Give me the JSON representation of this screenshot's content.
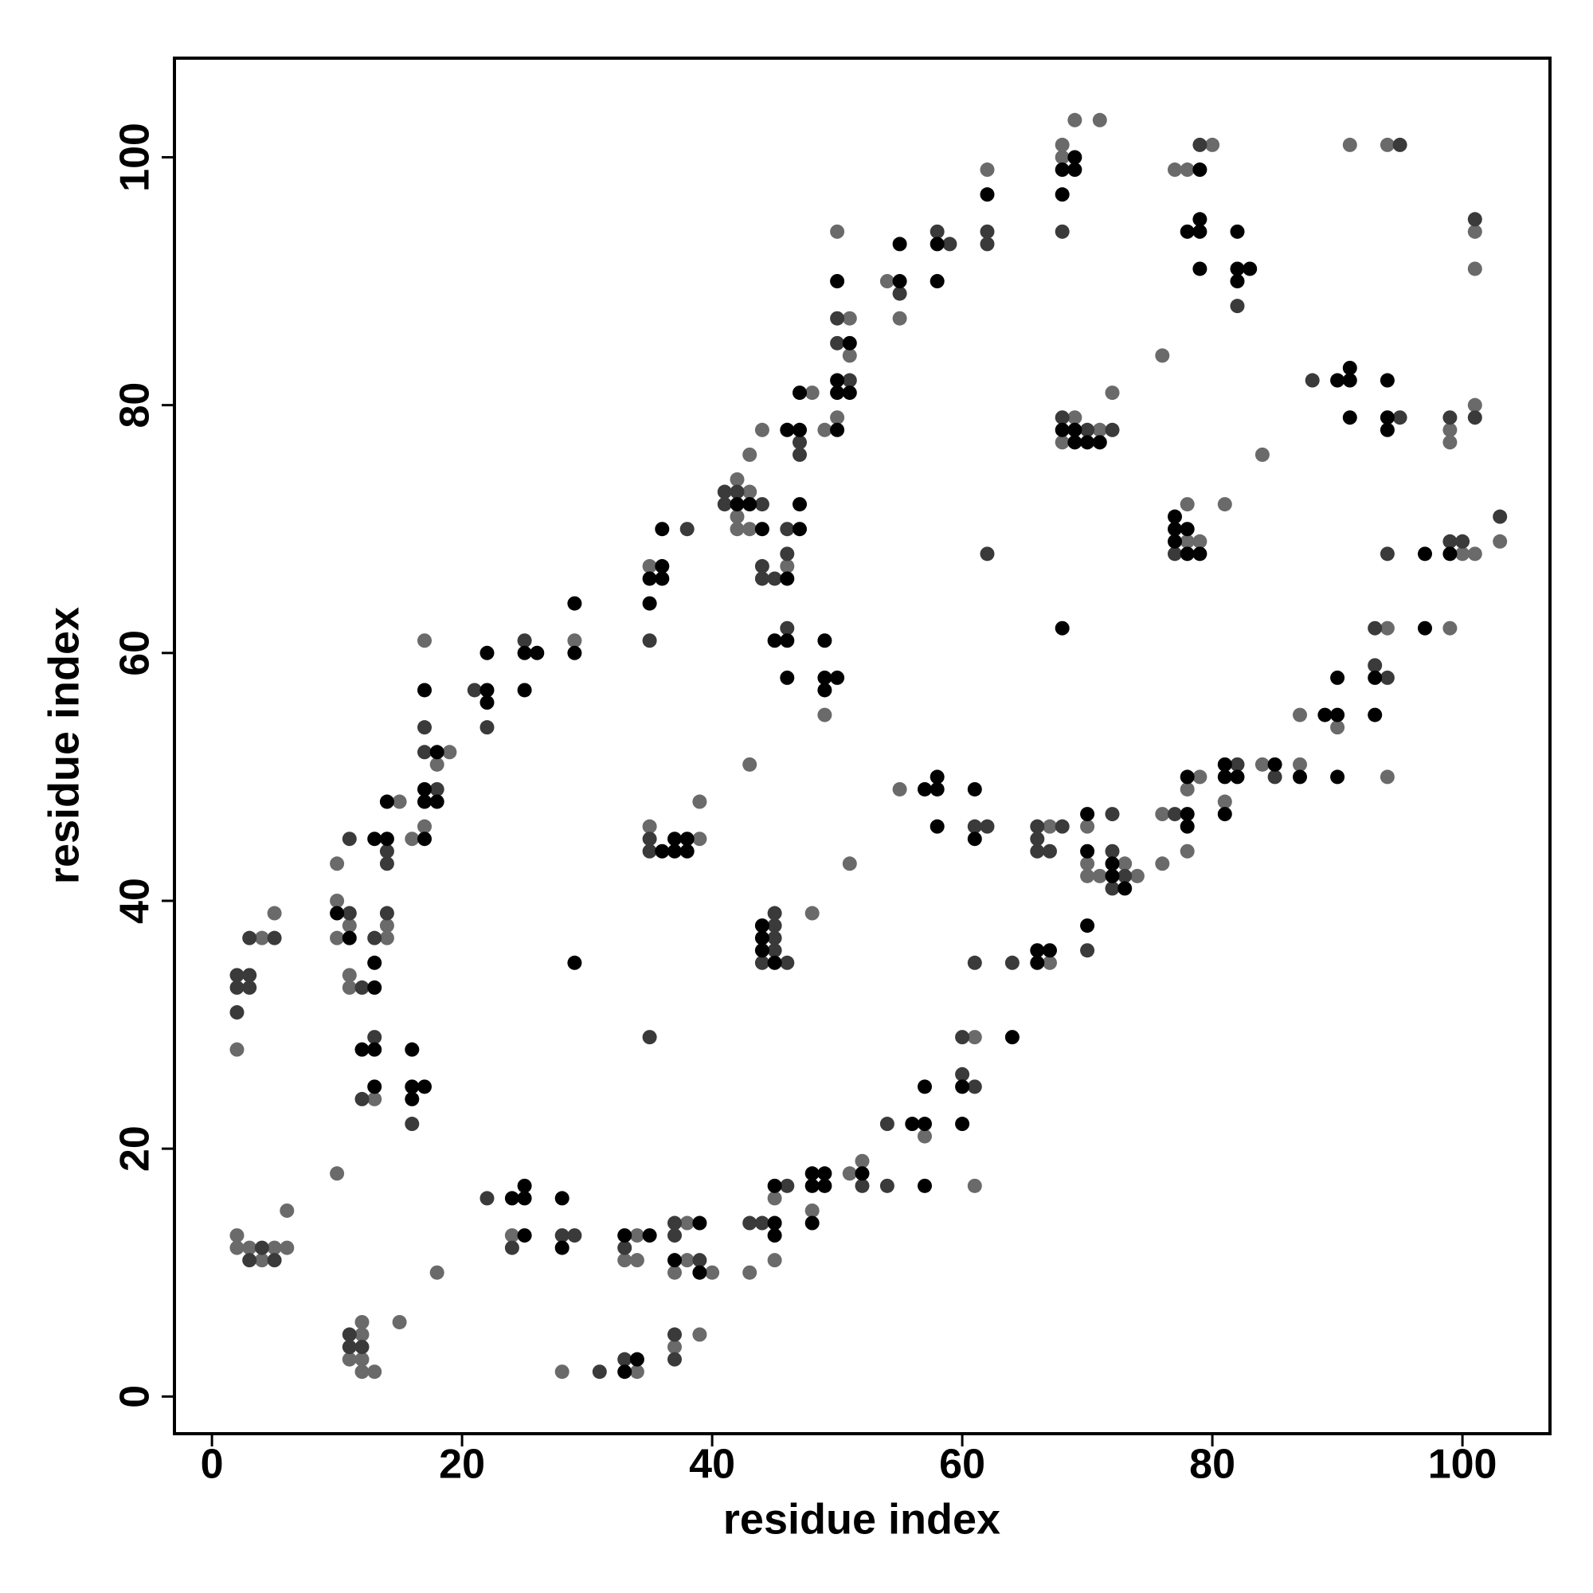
{
  "chart_data": {
    "type": "scatter",
    "x_label": "residue index",
    "y_label": "residue index",
    "xlim": [
      -3,
      107
    ],
    "ylim": [
      -3,
      108
    ],
    "xticks": [
      0,
      20,
      40,
      60,
      80,
      100
    ],
    "yticks": [
      0,
      20,
      40,
      60,
      80,
      100
    ],
    "grid": false,
    "series": [
      {
        "color": "#6a6a6a",
        "x": [
          2,
          4,
          5,
          2,
          2,
          3,
          4,
          5,
          6,
          6,
          10,
          10,
          10,
          10,
          11,
          11,
          11,
          14,
          14,
          15,
          16,
          17,
          18,
          19,
          17,
          13,
          11,
          12,
          12,
          12,
          12,
          13,
          15,
          18,
          29,
          24,
          28,
          34,
          34,
          33,
          34,
          35,
          35,
          39,
          39,
          38,
          38,
          40,
          37,
          37,
          39,
          42,
          43,
          42,
          42,
          43,
          43,
          44,
          48,
          46,
          43,
          45,
          45,
          43,
          49,
          50,
          51,
          51,
          50,
          49,
          48,
          51,
          48,
          51,
          52,
          54,
          55,
          62,
          55,
          61,
          61,
          57,
          67,
          67,
          68,
          69,
          71,
          68,
          69,
          71,
          72,
          68,
          70,
          70,
          70,
          71,
          73,
          74,
          76,
          77,
          78,
          80,
          78,
          78,
          79,
          81,
          84,
          76,
          78,
          79,
          78,
          76,
          81,
          84,
          87,
          87,
          91,
          94,
          90,
          94,
          94,
          99,
          100,
          101,
          99,
          99,
          101,
          101,
          101,
          103
        ],
        "values": [
          28,
          37,
          39,
          13,
          12,
          12,
          11,
          12,
          12,
          15,
          18,
          43,
          40,
          37,
          38,
          34,
          33,
          37,
          38,
          48,
          45,
          46,
          51,
          52,
          61,
          24,
          3,
          3,
          5,
          6,
          2,
          2,
          6,
          10,
          61,
          13,
          2,
          2,
          13,
          11,
          11,
          67,
          46,
          45,
          48,
          14,
          11,
          10,
          10,
          4,
          5,
          74,
          73,
          71,
          70,
          70,
          76,
          78,
          81,
          67,
          51,
          16,
          11,
          10,
          78,
          79,
          84,
          87,
          94,
          55,
          39,
          43,
          15,
          18,
          19,
          90,
          87,
          99,
          49,
          29,
          17,
          21,
          35,
          46,
          101,
          103,
          103,
          100,
          79,
          78,
          81,
          77,
          46,
          43,
          42,
          42,
          43,
          42,
          84,
          99,
          99,
          101,
          72,
          69,
          69,
          72,
          76,
          47,
          49,
          50,
          44,
          43,
          48,
          51,
          51,
          55,
          101,
          101,
          54,
          50,
          62,
          62,
          68,
          68,
          78,
          77,
          80,
          94,
          91,
          69
        ]
      },
      {
        "color": "#3a3a3a",
        "x": [
          2,
          3,
          2,
          3,
          2,
          3,
          5,
          3,
          4,
          5,
          11,
          11,
          12,
          13,
          14,
          14,
          14,
          18,
          17,
          17,
          13,
          12,
          16,
          11,
          11,
          12,
          21,
          22,
          25,
          22,
          24,
          28,
          29,
          31,
          33,
          33,
          38,
          35,
          35,
          35,
          35,
          37,
          37,
          39,
          37,
          37,
          41,
          42,
          41,
          44,
          47,
          47,
          44,
          44,
          45,
          46,
          46,
          46,
          45,
          45,
          45,
          45,
          44,
          46,
          43,
          44,
          46,
          51,
          50,
          50,
          52,
          54,
          55,
          58,
          59,
          62,
          62,
          62,
          61,
          62,
          61,
          60,
          60,
          61,
          64,
          54,
          66,
          68,
          66,
          66,
          67,
          68,
          68,
          70,
          72,
          72,
          72,
          73,
          72,
          70,
          79,
          82,
          77,
          77,
          82,
          85,
          88,
          95,
          94,
          95,
          93,
          94,
          93,
          99,
          100,
          99,
          101,
          101,
          103
        ],
        "values": [
          34,
          34,
          33,
          33,
          31,
          37,
          37,
          11,
          12,
          11,
          39,
          45,
          33,
          37,
          39,
          44,
          43,
          49,
          52,
          54,
          29,
          24,
          22,
          5,
          4,
          4,
          57,
          54,
          61,
          16,
          12,
          13,
          13,
          2,
          3,
          12,
          70,
          61,
          45,
          44,
          29,
          14,
          13,
          11,
          5,
          3,
          73,
          73,
          72,
          72,
          77,
          76,
          67,
          66,
          66,
          68,
          70,
          62,
          39,
          37,
          38,
          36,
          35,
          35,
          14,
          14,
          17,
          82,
          85,
          87,
          17,
          17,
          89,
          94,
          93,
          94,
          93,
          68,
          46,
          46,
          35,
          29,
          26,
          25,
          35,
          22,
          46,
          46,
          45,
          44,
          44,
          94,
          79,
          78,
          78,
          47,
          44,
          42,
          41,
          36,
          101,
          88,
          68,
          47,
          51,
          50,
          82,
          79,
          68,
          101,
          59,
          58,
          62,
          69,
          69,
          79,
          79,
          95,
          71
        ]
      },
      {
        "color": "#000000",
        "x": [
          10,
          11,
          13,
          13,
          13,
          14,
          14,
          17,
          17,
          17,
          18,
          18,
          17,
          12,
          13,
          13,
          16,
          16,
          17,
          16,
          22,
          22,
          22,
          25,
          26,
          25,
          29,
          29,
          29,
          24,
          25,
          25,
          25,
          28,
          28,
          33,
          34,
          33,
          35,
          35,
          36,
          36,
          35,
          36,
          36,
          37,
          37,
          38,
          38,
          39,
          37,
          39,
          42,
          43,
          44,
          46,
          47,
          47,
          46,
          47,
          47,
          45,
          46,
          46,
          44,
          44,
          44,
          45,
          45,
          45,
          45,
          50,
          50,
          51,
          50,
          51,
          50,
          49,
          49,
          50,
          49,
          48,
          49,
          48,
          49,
          48,
          52,
          55,
          55,
          58,
          58,
          62,
          57,
          58,
          58,
          58,
          61,
          61,
          60,
          60,
          64,
          56,
          57,
          57,
          57,
          66,
          66,
          67,
          68,
          69,
          68,
          69,
          68,
          68,
          69,
          69,
          70,
          71,
          70,
          70,
          72,
          72,
          73,
          70,
          79,
          79,
          78,
          79,
          79,
          82,
          82,
          83,
          82,
          77,
          77,
          78,
          77,
          78,
          79,
          78,
          78,
          78,
          81,
          81,
          82,
          81,
          85,
          87,
          90,
          91,
          91,
          91,
          94,
          94,
          94,
          89,
          90,
          90,
          90,
          93,
          93,
          97,
          97,
          99
        ],
        "values": [
          39,
          37,
          33,
          35,
          45,
          45,
          48,
          45,
          48,
          49,
          48,
          52,
          57,
          28,
          28,
          25,
          28,
          25,
          25,
          24,
          57,
          56,
          60,
          60,
          60,
          57,
          60,
          64,
          35,
          16,
          16,
          17,
          13,
          16,
          12,
          2,
          3,
          13,
          13,
          66,
          66,
          67,
          64,
          70,
          44,
          45,
          44,
          45,
          44,
          14,
          11,
          10,
          72,
          72,
          70,
          78,
          78,
          81,
          66,
          70,
          72,
          61,
          61,
          58,
          38,
          37,
          36,
          35,
          14,
          13,
          17,
          78,
          81,
          81,
          82,
          85,
          90,
          61,
          58,
          58,
          57,
          18,
          18,
          17,
          17,
          14,
          18,
          90,
          93,
          93,
          90,
          97,
          49,
          49,
          50,
          46,
          49,
          45,
          25,
          22,
          29,
          22,
          22,
          25,
          17,
          35,
          36,
          36,
          62,
          100,
          99,
          99,
          97,
          78,
          78,
          77,
          77,
          77,
          47,
          44,
          43,
          42,
          41,
          38,
          99,
          95,
          94,
          94,
          91,
          94,
          91,
          91,
          90,
          71,
          70,
          70,
          69,
          68,
          68,
          47,
          46,
          50,
          51,
          50,
          50,
          47,
          51,
          50,
          82,
          82,
          83,
          79,
          82,
          79,
          78,
          55,
          55,
          58,
          50,
          58,
          55,
          68,
          62,
          68
        ]
      }
    ]
  }
}
